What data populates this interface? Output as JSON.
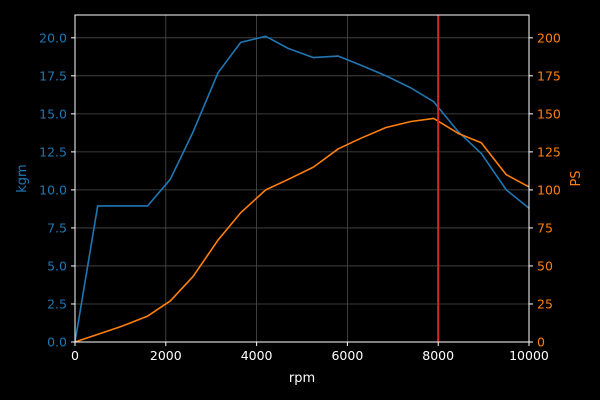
{
  "chart_data": {
    "type": "line",
    "background": "#000000",
    "grid": true,
    "legend": "none",
    "xlabel": "rpm",
    "xlim": [
      0,
      10000
    ],
    "xticks": [
      0,
      2000,
      4000,
      6000,
      8000,
      10000
    ],
    "x_tick_labels": [
      "0",
      "2000",
      "4000",
      "6000",
      "8000",
      "10000"
    ],
    "y_left": {
      "label": "kgm",
      "color": "#1f77b4",
      "lim": [
        0,
        21.5
      ],
      "ticks": [
        0,
        2.5,
        5,
        7.5,
        10,
        12.5,
        15,
        17.5,
        20
      ],
      "tick_labels": [
        "0.0",
        "2.5",
        "5.0",
        "7.5",
        "10.0",
        "12.5",
        "15.0",
        "17.5",
        "20.0"
      ]
    },
    "y_right": {
      "label": "PS",
      "color": "#ff7f0e",
      "lim": [
        0,
        215
      ],
      "ticks": [
        0,
        25,
        50,
        75,
        100,
        125,
        150,
        175,
        200
      ],
      "tick_labels": [
        "0",
        "25",
        "50",
        "75",
        "100",
        "125",
        "150",
        "175",
        "200"
      ]
    },
    "series": [
      {
        "axis": "left",
        "color": "#1f77b4",
        "points": [
          [
            0,
            0
          ],
          [
            500,
            8.95
          ],
          [
            1000,
            8.95
          ],
          [
            1600,
            8.95
          ],
          [
            2100,
            10.7
          ],
          [
            2600,
            13.8
          ],
          [
            3150,
            17.7
          ],
          [
            3650,
            19.7
          ],
          [
            4200,
            20.1
          ],
          [
            4700,
            19.3
          ],
          [
            5250,
            18.7
          ],
          [
            5800,
            18.8
          ],
          [
            6300,
            18.2
          ],
          [
            6850,
            17.5
          ],
          [
            7400,
            16.7
          ],
          [
            7900,
            15.8
          ],
          [
            8450,
            13.8
          ],
          [
            8950,
            12.4
          ],
          [
            9500,
            10.0
          ],
          [
            10000,
            8.8
          ]
        ]
      },
      {
        "axis": "right",
        "color": "#ff7f0e",
        "points": [
          [
            0,
            0
          ],
          [
            500,
            5
          ],
          [
            1000,
            10
          ],
          [
            1600,
            17
          ],
          [
            2100,
            27
          ],
          [
            2600,
            43
          ],
          [
            3150,
            67
          ],
          [
            3650,
            85
          ],
          [
            4200,
            100
          ],
          [
            4700,
            107
          ],
          [
            5250,
            115
          ],
          [
            5800,
            127
          ],
          [
            6300,
            134
          ],
          [
            6850,
            141
          ],
          [
            7400,
            145
          ],
          [
            7900,
            147
          ],
          [
            8450,
            137
          ],
          [
            8950,
            131
          ],
          [
            9500,
            110
          ],
          [
            10000,
            102
          ]
        ]
      }
    ],
    "vline": {
      "x": 8000,
      "color": "#d62728"
    }
  }
}
